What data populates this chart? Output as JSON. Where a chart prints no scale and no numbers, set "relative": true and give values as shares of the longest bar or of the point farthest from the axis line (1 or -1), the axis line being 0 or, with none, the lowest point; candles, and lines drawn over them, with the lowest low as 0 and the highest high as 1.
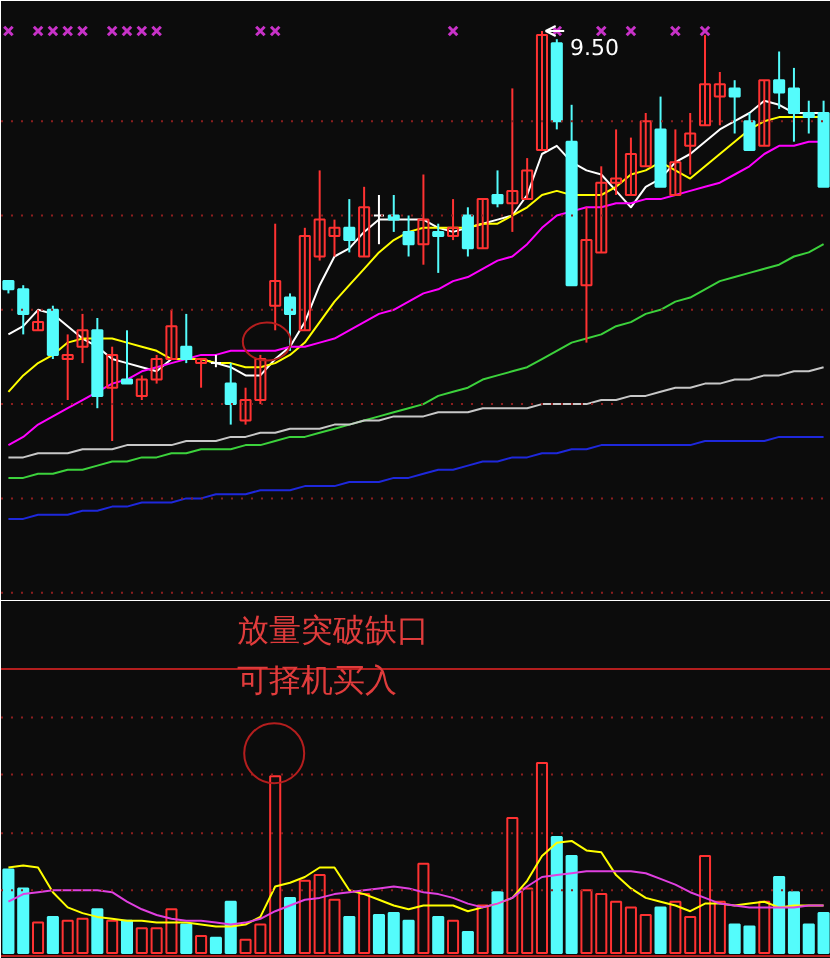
{
  "chart_data": [
    {
      "type": "candlestick",
      "relative": true,
      "ref_lines": [
        {
          "axis": "y",
          "value": 0.78,
          "color": "#8c1e1e",
          "line_style": "dotted"
        },
        {
          "axis": "y",
          "value": 0.55,
          "color": "#8c1e1e",
          "line_style": "dotted"
        },
        {
          "axis": "y",
          "value": 0.32,
          "color": "#8c1e1e",
          "line_style": "dotted"
        },
        {
          "axis": "y",
          "value": 0.09,
          "color": "#8c1e1e",
          "line_style": "dotted"
        },
        {
          "axis": "y",
          "value": -0.14,
          "color": "#8c1e1e",
          "line_style": "dotted"
        },
        {
          "axis": "y",
          "value": -0.37,
          "color": "#8c1e1e",
          "line_style": "dotted"
        }
      ],
      "categories": [
        null,
        null,
        null,
        null,
        null,
        null,
        null,
        null,
        null,
        null,
        null,
        null,
        null,
        null,
        null,
        null,
        null,
        null,
        null,
        null,
        null,
        null,
        null,
        null,
        null,
        null,
        null,
        null,
        null,
        null,
        null,
        null,
        null,
        null,
        null,
        null,
        null,
        null,
        null,
        null,
        null,
        null,
        null,
        null,
        null,
        null,
        null,
        null,
        null,
        null,
        null,
        null,
        null,
        null,
        null,
        null
      ],
      "ohlc": [
        [
          0.39,
          0.39,
          0.36,
          0.37
        ],
        [
          0.37,
          0.38,
          0.26,
          0.31
        ],
        [
          0.27,
          0.32,
          0.27,
          0.29
        ],
        [
          0.32,
          0.33,
          0.2,
          0.21
        ],
        [
          0.2,
          0.26,
          0.1,
          0.21
        ],
        [
          0.23,
          0.31,
          0.19,
          0.27
        ],
        [
          0.27,
          0.3,
          0.08,
          0.11
        ],
        [
          0.13,
          0.23,
          0,
          0.21
        ],
        [
          0.15,
          0.27,
          0.14,
          0.14
        ],
        [
          0.11,
          0.16,
          0.1,
          0.15
        ],
        [
          0.15,
          0.21,
          0.14,
          0.2
        ],
        [
          0.2,
          0.32,
          0.2,
          0.28
        ],
        [
          0.23,
          0.31,
          0.19,
          0.2
        ],
        [
          0.19,
          0.2,
          0.13,
          0.2
        ],
        [
          0.19,
          0.21,
          0.18,
          0.19
        ],
        [
          0.14,
          0.19,
          0.04,
          0.09
        ],
        [
          0.05,
          0.13,
          0.04,
          0.1
        ],
        [
          0.1,
          0.21,
          0.09,
          0.2
        ],
        [
          0.33,
          0.53,
          0.27,
          0.39
        ],
        [
          0.35,
          0.36,
          0.22,
          0.31
        ],
        [
          0.27,
          0.52,
          0.27,
          0.5
        ],
        [
          0.45,
          0.66,
          0.44,
          0.54
        ],
        [
          0.5,
          0.54,
          0.45,
          0.52
        ],
        [
          0.52,
          0.59,
          0.46,
          0.49
        ],
        [
          0.45,
          0.62,
          0.45,
          0.57
        ],
        [
          0.55,
          0.6,
          0.48,
          0.55
        ],
        [
          0.55,
          0.6,
          0.51,
          0.54
        ],
        [
          0.51,
          0.55,
          0.45,
          0.48
        ],
        [
          0.48,
          0.65,
          0.43,
          0.54
        ],
        [
          0.51,
          0.53,
          0.41,
          0.5
        ],
        [
          0.5,
          0.59,
          0.49,
          0.52
        ],
        [
          0.55,
          0.57,
          0.45,
          0.47
        ],
        [
          0.47,
          0.59,
          0.47,
          0.59
        ],
        [
          0.6,
          0.66,
          0.57,
          0.58
        ],
        [
          0.58,
          0.86,
          0.51,
          0.61
        ],
        [
          0.59,
          0.69,
          0.59,
          0.66
        ],
        [
          0.71,
          1,
          0.71,
          0.99
        ],
        [
          0.97,
          0.98,
          0.76,
          0.78
        ],
        [
          0.73,
          0.82,
          0.38,
          0.38
        ],
        [
          0.38,
          0.57,
          0.24,
          0.49
        ],
        [
          0.46,
          0.67,
          0.46,
          0.63
        ],
        [
          0.63,
          0.76,
          0.6,
          0.64
        ],
        [
          0.6,
          0.74,
          0.6,
          0.7
        ],
        [
          0.67,
          0.8,
          0.67,
          0.78
        ],
        [
          0.76,
          0.84,
          0.62,
          0.62
        ],
        [
          0.6,
          0.76,
          0.6,
          0.68
        ],
        [
          0.72,
          0.8,
          0.65,
          0.75
        ],
        [
          0.77,
          0.99,
          0.77,
          0.87
        ],
        [
          0.84,
          0.9,
          0.77,
          0.87
        ],
        [
          0.86,
          0.88,
          0.75,
          0.84
        ],
        [
          0.78,
          0.8,
          0.71,
          0.71
        ],
        [
          0.72,
          0.88,
          0.72,
          0.88
        ],
        [
          0.88,
          0.95,
          0.81,
          0.85
        ],
        [
          0.86,
          0.91,
          0.73,
          0.8
        ],
        [
          0.8,
          0.83,
          0.75,
          0.79
        ],
        [
          0.8,
          0.83,
          0.62,
          0.62
        ]
      ],
      "colors": [
        "#54fcfc",
        "#54fcfc",
        "#ff3232",
        "#54fcfc",
        "#ff3232",
        "#ff3232",
        "#54fcfc",
        "#ff3232",
        "#54fcfc",
        "#ff3232",
        "#ff3232",
        "#ff3232",
        "#54fcfc",
        "#ff3232",
        "#ffffff",
        "#54fcfc",
        "#ff3232",
        "#ff3232",
        "#ff3232",
        "#54fcfc",
        "#ff3232",
        "#ff3232",
        "#ff3232",
        "#54fcfc",
        "#ff3232",
        "#ffffff",
        "#54fcfc",
        "#54fcfc",
        "#ff3232",
        "#54fcfc",
        "#ff3232",
        "#54fcfc",
        "#ff3232",
        "#54fcfc",
        "#ff3232",
        "#ff3232",
        "#ff3232",
        "#54fcfc",
        "#54fcfc",
        "#ff3232",
        "#ff3232",
        "#ff3232",
        "#ff3232",
        "#ff3232",
        "#54fcfc",
        "#ff3232",
        "#ff3232",
        "#ff3232",
        "#ff3232",
        "#54fcfc",
        "#54fcfc",
        "#ff3232",
        "#54fcfc",
        "#54fcfc",
        "#54fcfc",
        "#54fcfc"
      ],
      "series": [
        {
          "type": "line",
          "color": "#ffffff",
          "values": [
            0.26,
            0.28,
            0.32,
            0.31,
            0.28,
            0.25,
            0.23,
            0.2,
            0.19,
            0.18,
            0.17,
            0.2,
            0.2,
            0.2,
            0.19,
            0.18,
            0.16,
            0.16,
            0.2,
            0.23,
            0.29,
            0.38,
            0.45,
            0.47,
            0.51,
            0.54,
            0.54,
            0.54,
            0.54,
            0.52,
            0.51,
            0.52,
            0.53,
            0.54,
            0.55,
            0.6,
            0.7,
            0.72,
            0.68,
            0.66,
            0.65,
            0.61,
            0.57,
            0.62,
            0.64,
            0.68,
            0.7,
            0.73,
            0.76,
            0.78,
            0.8,
            0.83,
            0.82,
            0.8,
            0.8,
            0.8
          ]
        },
        {
          "type": "line",
          "color": "#ffff00",
          "values": [
            0.12,
            0.16,
            0.19,
            0.21,
            0.24,
            0.25,
            0.25,
            0.25,
            0.24,
            0.23,
            0.22,
            0.2,
            0.2,
            0.2,
            0.19,
            0.19,
            0.18,
            0.18,
            0.19,
            0.21,
            0.24,
            0.29,
            0.34,
            0.38,
            0.42,
            0.46,
            0.49,
            0.51,
            0.52,
            0.52,
            0.52,
            0.52,
            0.53,
            0.53,
            0.55,
            0.57,
            0.6,
            0.61,
            0.6,
            0.6,
            0.6,
            0.62,
            0.65,
            0.66,
            0.68,
            0.66,
            0.64,
            0.67,
            0.7,
            0.73,
            0.76,
            0.78,
            0.79,
            0.79,
            0.79,
            0.79
          ]
        },
        {
          "type": "line",
          "color": "#ff00ff",
          "values": [
            -0.01,
            0.01,
            0.04,
            0.06,
            0.08,
            0.1,
            0.12,
            0.14,
            0.15,
            0.17,
            0.18,
            0.19,
            0.2,
            0.21,
            0.21,
            0.22,
            0.22,
            0.22,
            0.22,
            0.23,
            0.23,
            0.24,
            0.25,
            0.27,
            0.29,
            0.31,
            0.32,
            0.34,
            0.36,
            0.37,
            0.39,
            0.4,
            0.42,
            0.44,
            0.45,
            0.48,
            0.52,
            0.55,
            0.56,
            0.57,
            0.57,
            0.58,
            0.58,
            0.59,
            0.59,
            0.6,
            0.61,
            0.62,
            0.63,
            0.65,
            0.67,
            0.7,
            0.72,
            0.72,
            0.73,
            0.73
          ]
        },
        {
          "type": "line",
          "color": "#3cd23c",
          "values": [
            -0.09,
            -0.09,
            -0.08,
            -0.08,
            -0.07,
            -0.07,
            -0.06,
            -0.05,
            -0.05,
            -0.04,
            -0.04,
            -0.03,
            -0.03,
            -0.02,
            -0.02,
            -0.02,
            -0.01,
            -0.01,
            0.0,
            0.01,
            0.01,
            0.02,
            0.03,
            0.04,
            0.05,
            0.06,
            0.07,
            0.08,
            0.09,
            0.11,
            0.12,
            0.13,
            0.15,
            0.16,
            0.17,
            0.18,
            0.2,
            0.22,
            0.24,
            0.25,
            0.26,
            0.28,
            0.29,
            0.31,
            0.32,
            0.34,
            0.35,
            0.37,
            0.39,
            0.4,
            0.41,
            0.42,
            0.43,
            0.45,
            0.46,
            0.48
          ]
        },
        {
          "type": "line",
          "color": "#c8c8c8",
          "values": [
            -0.04,
            -0.04,
            -0.03,
            -0.03,
            -0.03,
            -0.02,
            -0.02,
            -0.02,
            -0.01,
            -0.01,
            -0.01,
            -0.01,
            0.0,
            0.0,
            0.0,
            0.01,
            0.01,
            0.02,
            0.02,
            0.03,
            0.03,
            0.03,
            0.04,
            0.04,
            0.05,
            0.05,
            0.06,
            0.06,
            0.06,
            0.07,
            0.07,
            0.07,
            0.08,
            0.08,
            0.08,
            0.08,
            0.09,
            0.09,
            0.09,
            0.09,
            0.1,
            0.1,
            0.11,
            0.11,
            0.12,
            0.13,
            0.13,
            0.14,
            0.14,
            0.15,
            0.15,
            0.16,
            0.16,
            0.17,
            0.17,
            0.18
          ]
        },
        {
          "type": "line",
          "color": "#1e28dc",
          "values": [
            -0.19,
            -0.19,
            -0.18,
            -0.18,
            -0.18,
            -0.17,
            -0.17,
            -0.16,
            -0.16,
            -0.15,
            -0.15,
            -0.15,
            -0.14,
            -0.14,
            -0.13,
            -0.13,
            -0.13,
            -0.12,
            -0.12,
            -0.12,
            -0.11,
            -0.11,
            -0.11,
            -0.1,
            -0.1,
            -0.1,
            -0.09,
            -0.09,
            -0.08,
            -0.07,
            -0.07,
            -0.06,
            -0.05,
            -0.05,
            -0.04,
            -0.04,
            -0.03,
            -0.03,
            -0.02,
            -0.02,
            -0.01,
            -0.01,
            -0.01,
            -0.01,
            -0.01,
            -0.01,
            -0.01,
            0.0,
            0.0,
            0.0,
            0.0,
            0.0,
            0.01,
            0.01,
            0.01,
            0.01
          ]
        },
        {
          "type": "scatter",
          "marker": "cross",
          "color": "#c832c8",
          "values": [
            1,
            null,
            1,
            1,
            1,
            1,
            null,
            1,
            1,
            1,
            1,
            null,
            null,
            null,
            null,
            null,
            null,
            1,
            1,
            null,
            null,
            null,
            null,
            null,
            null,
            null,
            null,
            null,
            null,
            null,
            1,
            null,
            null,
            null,
            null,
            null,
            null,
            1,
            null,
            null,
            1,
            null,
            1,
            null,
            null,
            1,
            null,
            1,
            null,
            null,
            null,
            null,
            null,
            null,
            null,
            null
          ]
        }
      ],
      "annotations": [
        {
          "text": "9.50",
          "y": 1
        }
      ]
    },
    {
      "type": "bar",
      "relative": true,
      "ref_lines": [
        {
          "axis": "y",
          "value": 1.24,
          "color": "#8c1e1e",
          "line_style": "dotted"
        },
        {
          "axis": "y",
          "value": 0.94,
          "color": "#8c1e1e",
          "line_style": "dotted"
        },
        {
          "axis": "y",
          "value": 0.63,
          "color": "#8c1e1e",
          "line_style": "dotted"
        },
        {
          "axis": "y",
          "value": 0.33,
          "color": "#8c1e1e",
          "line_style": "dotted"
        }
      ],
      "categories": [
        null,
        null,
        null,
        null,
        null,
        null,
        null,
        null,
        null,
        null,
        null,
        null,
        null,
        null,
        null,
        null,
        null,
        null,
        null,
        null,
        null,
        null,
        null,
        null,
        null,
        null,
        null,
        null,
        null,
        null,
        null,
        null,
        null,
        null,
        null,
        null,
        null,
        null,
        null,
        null,
        null,
        null,
        null,
        null,
        null,
        null,
        null,
        null,
        null,
        null,
        null,
        null,
        null,
        null,
        null,
        null
      ],
      "series": [
        {
          "type": "bar",
          "colors": [
            "#54fcfc",
            "#54fcfc",
            "#ff3232",
            "#54fcfc",
            "#ff3232",
            "#ff3232",
            "#54fcfc",
            "#ff3232",
            "#54fcfc",
            "#ff3232",
            "#ff3232",
            "#ff3232",
            "#54fcfc",
            "#ff3232",
            "#54fcfc",
            "#54fcfc",
            "#ff3232",
            "#ff3232",
            "#ff3232",
            "#54fcfc",
            "#ff3232",
            "#ff3232",
            "#ff3232",
            "#54fcfc",
            "#ff3232",
            "#54fcfc",
            "#54fcfc",
            "#54fcfc",
            "#ff3232",
            "#54fcfc",
            "#ff3232",
            "#54fcfc",
            "#ff3232",
            "#54fcfc",
            "#ff3232",
            "#ff3232",
            "#ff3232",
            "#54fcfc",
            "#54fcfc",
            "#ff3232",
            "#ff3232",
            "#ff3232",
            "#ff3232",
            "#ff3232",
            "#54fcfc",
            "#ff3232",
            "#ff3232",
            "#ff3232",
            "#ff3232",
            "#54fcfc",
            "#54fcfc",
            "#ff3232",
            "#54fcfc",
            "#54fcfc",
            "#54fcfc",
            "#54fcfc"
          ],
          "values": [
            0.44,
            0.34,
            0.16,
            0.19,
            0.17,
            0.18,
            0.23,
            0.17,
            0.17,
            0.13,
            0.13,
            0.23,
            0.15,
            0.09,
            0.08,
            0.27,
            0.07,
            0.15,
            0.93,
            0.29,
            0.38,
            0.41,
            0.28,
            0.19,
            0.31,
            0.2,
            0.21,
            0.17,
            0.47,
            0.19,
            0.17,
            0.11,
            0.25,
            0.32,
            0.71,
            0.34,
            1,
            0.61,
            0.51,
            0.33,
            0.31,
            0.27,
            0.24,
            0.2,
            0.24,
            0.27,
            0.19,
            0.51,
            0.27,
            0.15,
            0.14,
            0.27,
            0.4,
            0.32,
            0.15,
            0.21
          ]
        },
        {
          "type": "line",
          "color": "#ffff00",
          "values": [
            0.45,
            0.46,
            0.45,
            0.32,
            0.24,
            0.21,
            0.19,
            0.18,
            0.17,
            0.17,
            0.16,
            0.16,
            0.16,
            0.15,
            0.14,
            0.14,
            0.15,
            0.19,
            0.35,
            0.37,
            0.4,
            0.45,
            0.45,
            0.33,
            0.31,
            0.28,
            0.25,
            0.23,
            0.25,
            0.25,
            0.25,
            0.22,
            0.24,
            0.26,
            0.29,
            0.38,
            0.51,
            0.58,
            0.59,
            0.54,
            0.53,
            0.41,
            0.34,
            0.29,
            0.27,
            0.25,
            0.22,
            0.26,
            0.26,
            0.25,
            0.26,
            0.27,
            0.24,
            0.25,
            0.25,
            0.25
          ]
        },
        {
          "type": "line",
          "color": "#e040e0",
          "values": [
            0.27,
            0.31,
            0.32,
            0.33,
            0.33,
            0.33,
            0.33,
            0.32,
            0.27,
            0.23,
            0.2,
            0.18,
            0.17,
            0.17,
            0.16,
            0.15,
            0.16,
            0.18,
            0.22,
            0.25,
            0.28,
            0.29,
            0.31,
            0.32,
            0.33,
            0.34,
            0.35,
            0.34,
            0.32,
            0.31,
            0.29,
            0.26,
            0.24,
            0.26,
            0.29,
            0.35,
            0.4,
            0.41,
            0.42,
            0.43,
            0.43,
            0.43,
            0.43,
            0.42,
            0.39,
            0.36,
            0.32,
            0.29,
            0.26,
            0.25,
            0.24,
            0.24,
            0.24,
            0.24,
            0.25,
            0.25
          ]
        }
      ],
      "annotations": [
        "放量突破缺口",
        "可择机买入"
      ]
    }
  ]
}
